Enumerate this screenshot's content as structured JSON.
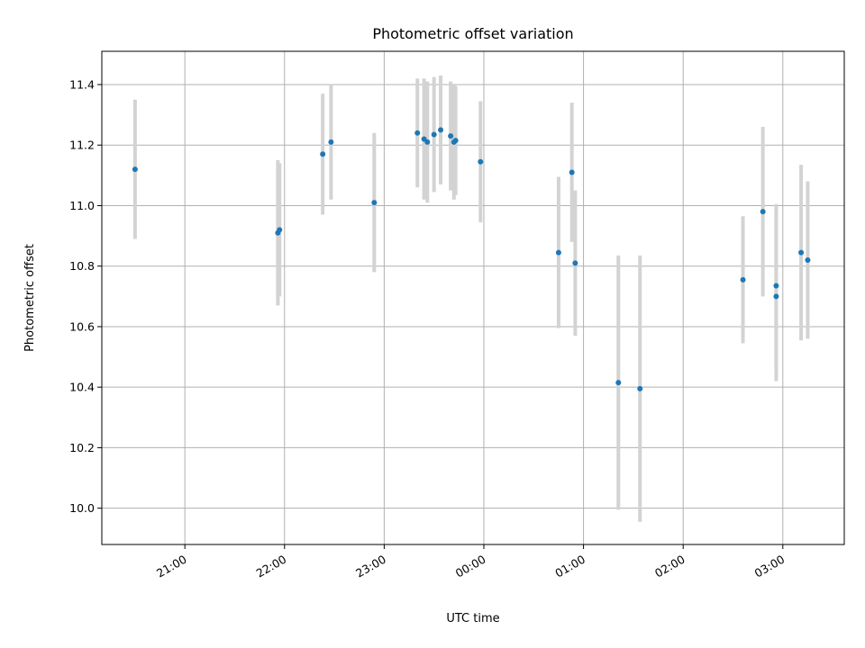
{
  "chart_data": {
    "type": "scatter",
    "title": "Photometric offset variation",
    "xlabel": "UTC time",
    "ylabel": "Photometric offset",
    "x_axis": "time",
    "xlim": [
      "20:10",
      "03:37"
    ],
    "ylim": [
      9.88,
      11.51
    ],
    "grid": true,
    "x_ticks": [
      "21:00",
      "22:00",
      "23:00",
      "00:00",
      "01:00",
      "02:00",
      "03:00"
    ],
    "y_ticks": [
      "10.0",
      "10.2",
      "10.4",
      "10.6",
      "10.8",
      "11.0",
      "11.2",
      "11.4"
    ],
    "colors": {
      "point": "#1f77b4",
      "errorbar": "#d3d3d3",
      "grid": "#b0b0b0"
    },
    "points": [
      {
        "x": "20:30",
        "y": 11.12,
        "yerr": 0.23
      },
      {
        "x": "21:56",
        "y": 10.91,
        "yerr": 0.24
      },
      {
        "x": "21:57",
        "y": 10.92,
        "yerr": 0.22
      },
      {
        "x": "22:23",
        "y": 11.17,
        "yerr": 0.2
      },
      {
        "x": "22:28",
        "y": 11.21,
        "yerr": 0.19
      },
      {
        "x": "22:54",
        "y": 11.01,
        "yerr": 0.23
      },
      {
        "x": "23:20",
        "y": 11.24,
        "yerr": 0.18
      },
      {
        "x": "23:24",
        "y": 11.22,
        "yerr": 0.2
      },
      {
        "x": "23:26",
        "y": 11.21,
        "yerr": 0.2
      },
      {
        "x": "23:30",
        "y": 11.235,
        "yerr": 0.19
      },
      {
        "x": "23:34",
        "y": 11.25,
        "yerr": 0.18
      },
      {
        "x": "23:40",
        "y": 11.23,
        "yerr": 0.18
      },
      {
        "x": "23:42",
        "y": 11.21,
        "yerr": 0.19
      },
      {
        "x": "23:43",
        "y": 11.215,
        "yerr": 0.18
      },
      {
        "x": "23:58",
        "y": 11.145,
        "yerr": 0.2
      },
      {
        "x": "00:45",
        "y": 10.845,
        "yerr": 0.25
      },
      {
        "x": "00:53",
        "y": 11.11,
        "yerr": 0.23
      },
      {
        "x": "00:55",
        "y": 10.81,
        "yerr": 0.24
      },
      {
        "x": "01:21",
        "y": 10.415,
        "yerr": 0.42
      },
      {
        "x": "01:34",
        "y": 10.395,
        "yerr": 0.44
      },
      {
        "x": "02:36",
        "y": 10.755,
        "yerr": 0.21
      },
      {
        "x": "02:48",
        "y": 10.98,
        "yerr": 0.28
      },
      {
        "x": "02:56",
        "y": 10.735,
        "yerr": 0.27
      },
      {
        "x": "02:56",
        "y": 10.7,
        "yerr": 0.28
      },
      {
        "x": "03:11",
        "y": 10.845,
        "yerr": 0.29
      },
      {
        "x": "03:15",
        "y": 10.82,
        "yerr": 0.26
      }
    ]
  }
}
